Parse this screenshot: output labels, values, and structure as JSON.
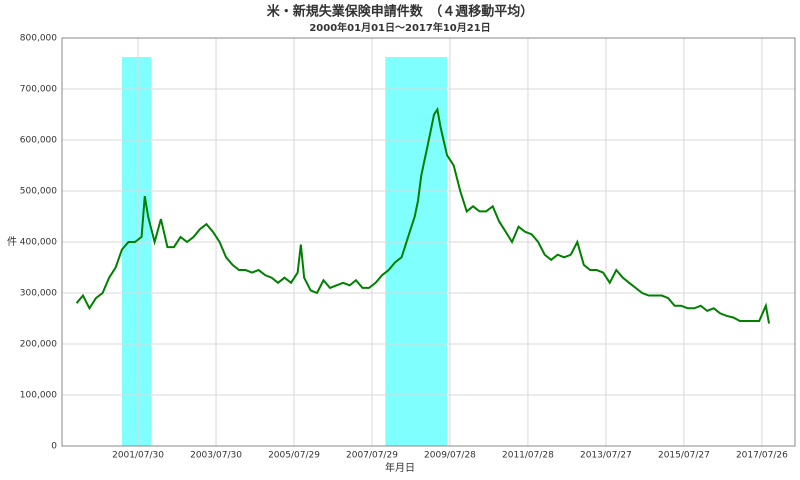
{
  "chart_data": {
    "type": "line",
    "title": "米・新規失業保険申請件数　（４週移動平均）",
    "subtitle": "2000年01月01日～2017年10月21日",
    "x_label": "年月日",
    "y_label": "件",
    "xlim": [
      "1999/08/18",
      "2018/06/01"
    ],
    "xticks": [
      "2001/07/30",
      "2003/07/30",
      "2005/07/29",
      "2007/07/29",
      "2009/07/28",
      "2011/07/28",
      "2013/07/27",
      "2015/07/27",
      "2017/07/26"
    ],
    "ylim": [
      0,
      800000
    ],
    "yticks": [
      0,
      {
        "value": 100000,
        "label": "100,000"
      },
      {
        "value": 200000,
        "label": "200,000"
      },
      {
        "value": 300000,
        "label": "300,000"
      },
      {
        "value": 400000,
        "label": "400,000"
      },
      {
        "value": 500000,
        "label": "500,000"
      },
      {
        "value": 600000,
        "label": "600,000"
      },
      {
        "value": 700000,
        "label": "700,000"
      },
      {
        "value": 800000,
        "label": "800,000"
      }
    ],
    "grid": true,
    "recessions": [
      {
        "start": "2001/03/01",
        "end": "2001/11/30",
        "color": "#80ffff"
      },
      {
        "start": "2007/12/01",
        "end": "2009/06/30",
        "color": "#80ffff"
      }
    ],
    "x": [
      "2000/01/01",
      "2000/03/01",
      "2000/05/01",
      "2000/07/01",
      "2000/09/01",
      "2000/11/01",
      "2001/01/01",
      "2001/03/01",
      "2001/05/01",
      "2001/07/01",
      "2001/09/01",
      "2001/10/01",
      "2001/11/01",
      "2002/01/01",
      "2002/03/01",
      "2002/05/01",
      "2002/07/01",
      "2002/09/01",
      "2002/11/01",
      "2003/01/01",
      "2003/03/01",
      "2003/05/01",
      "2003/07/01",
      "2003/09/01",
      "2003/11/01",
      "2004/01/01",
      "2004/03/01",
      "2004/05/01",
      "2004/07/01",
      "2004/09/01",
      "2004/11/01",
      "2005/01/01",
      "2005/03/01",
      "2005/05/01",
      "2005/07/01",
      "2005/09/01",
      "2005/10/01",
      "2005/11/01",
      "2006/01/01",
      "2006/03/01",
      "2006/05/01",
      "2006/07/01",
      "2006/09/01",
      "2006/11/01",
      "2007/01/01",
      "2007/03/01",
      "2007/05/01",
      "2007/07/01",
      "2007/09/01",
      "2007/11/01",
      "2008/01/01",
      "2008/03/01",
      "2008/05/01",
      "2008/07/01",
      "2008/09/01",
      "2008/10/01",
      "2008/11/01",
      "2008/12/01",
      "2009/01/01",
      "2009/03/01",
      "2009/04/01",
      "2009/05/01",
      "2009/07/01",
      "2009/09/01",
      "2009/11/01",
      "2010/01/01",
      "2010/03/01",
      "2010/05/01",
      "2010/07/01",
      "2010/09/01",
      "2010/11/01",
      "2011/01/01",
      "2011/03/01",
      "2011/05/01",
      "2011/07/01",
      "2011/09/01",
      "2011/11/01",
      "2012/01/01",
      "2012/03/01",
      "2012/05/01",
      "2012/07/01",
      "2012/09/01",
      "2012/11/01",
      "2013/01/01",
      "2013/03/01",
      "2013/05/01",
      "2013/07/01",
      "2013/09/01",
      "2013/11/01",
      "2014/01/01",
      "2014/03/01",
      "2014/05/01",
      "2014/07/01",
      "2014/09/01",
      "2014/11/01",
      "2015/01/01",
      "2015/03/01",
      "2015/05/01",
      "2015/07/01",
      "2015/09/01",
      "2015/11/01",
      "2016/01/01",
      "2016/03/01",
      "2016/05/01",
      "2016/07/01",
      "2016/09/01",
      "2016/11/01",
      "2017/01/01",
      "2017/03/01",
      "2017/05/01",
      "2017/07/01",
      "2017/09/01",
      "2017/10/01"
    ],
    "series": [
      {
        "color": "#008000",
        "values": [
          280000,
          295000,
          270000,
          290000,
          300000,
          330000,
          350000,
          385000,
          400000,
          400000,
          410000,
          490000,
          450000,
          400000,
          445000,
          390000,
          390000,
          410000,
          400000,
          410000,
          425000,
          435000,
          420000,
          400000,
          370000,
          355000,
          345000,
          345000,
          340000,
          345000,
          335000,
          330000,
          320000,
          330000,
          320000,
          340000,
          395000,
          330000,
          305000,
          300000,
          325000,
          310000,
          315000,
          320000,
          315000,
          325000,
          310000,
          310000,
          320000,
          335000,
          345000,
          360000,
          370000,
          410000,
          450000,
          480000,
          530000,
          560000,
          590000,
          650000,
          660000,
          625000,
          570000,
          550000,
          500000,
          460000,
          470000,
          460000,
          460000,
          470000,
          440000,
          420000,
          400000,
          430000,
          420000,
          415000,
          400000,
          375000,
          365000,
          375000,
          370000,
          375000,
          400000,
          355000,
          345000,
          345000,
          340000,
          320000,
          345000,
          330000,
          320000,
          310000,
          300000,
          295000,
          295000,
          295000,
          290000,
          275000,
          275000,
          270000,
          270000,
          275000,
          265000,
          270000,
          260000,
          255000,
          252000,
          245000,
          245000,
          245000,
          245000,
          275000,
          240000
        ]
      }
    ]
  }
}
